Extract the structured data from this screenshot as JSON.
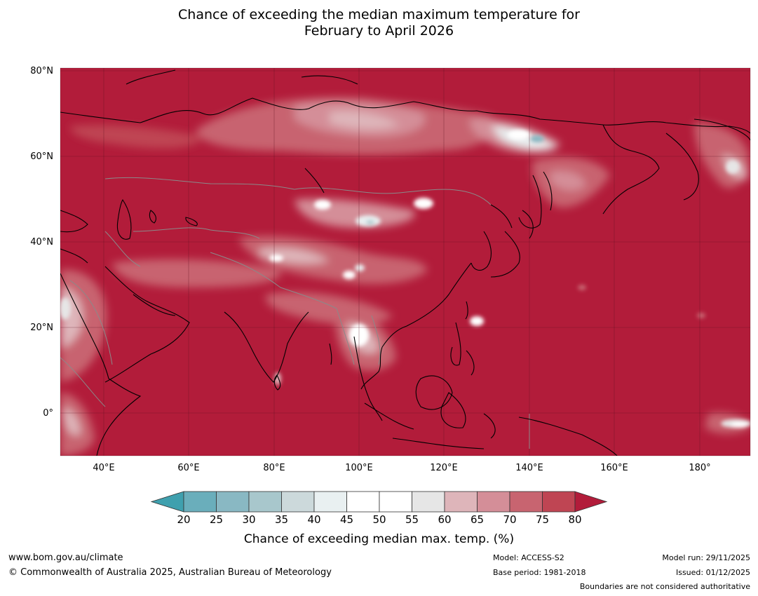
{
  "title": {
    "line1": "Chance of exceeding the median maximum temperature for",
    "line2": "February to April 2026"
  },
  "map": {
    "lat_labels": [
      "80°N",
      "60°N",
      "40°N",
      "20°N",
      "0°"
    ],
    "lon_labels": [
      "40°E",
      "60°E",
      "80°E",
      "100°E",
      "120°E",
      "140°E",
      "160°E",
      "180°"
    ],
    "extent": {
      "lon_min": 30,
      "lon_max": 192,
      "lat_min": -10,
      "lat_max": 81
    },
    "dominant_color": "#b21c3a"
  },
  "colorbar": {
    "ticks": [
      "20",
      "25",
      "30",
      "35",
      "40",
      "45",
      "50",
      "55",
      "60",
      "65",
      "70",
      "75",
      "80"
    ],
    "colors": [
      "#3fa0ae",
      "#6aaebb",
      "#89b8c3",
      "#a8c7cc",
      "#ccd9db",
      "#e9f0f1",
      "#ffffff",
      "#ffffff",
      "#e6e6e6",
      "#deb5ba",
      "#d48e98",
      "#c86470",
      "#bf4553",
      "#b21c3a"
    ],
    "label": "Chance of exceeding median max. temp. (%)"
  },
  "footer": {
    "website": "www.bom.gov.au/climate",
    "copyright": "© Commonwealth of Australia 2025, Australian Bureau of Meteorology",
    "model": "Model: ACCESS-S2",
    "base_period": "Base period: 1981-2018",
    "model_run": "Model run: 29/11/2025",
    "issued": "Issued: 01/12/2025",
    "disclaimer": "Boundaries are not considered authoritative"
  }
}
